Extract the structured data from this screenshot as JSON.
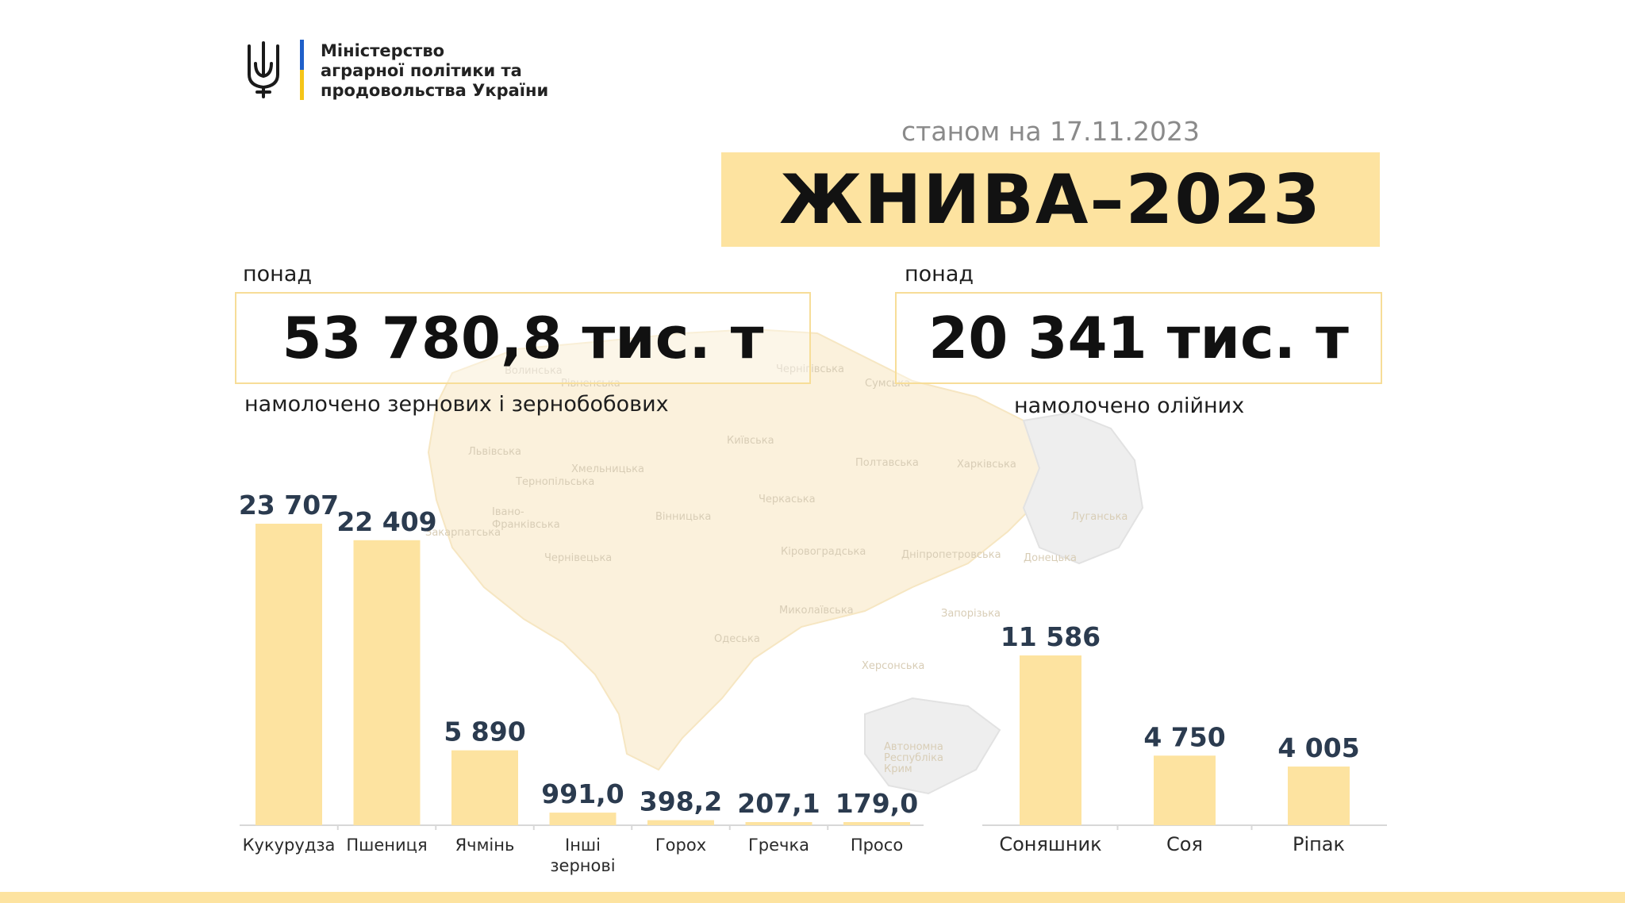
{
  "header": {
    "ministry_line1": "Міністерство",
    "ministry_line2": "аграрної політики та",
    "ministry_line3": "продовольства України",
    "logo_icon": "trident-coat-of-arms-icon",
    "flag_colors": {
      "blue": "#1f5fc9",
      "yellow": "#f5c518"
    }
  },
  "date_line": "станом на 17.11.2023",
  "title": "ЖНИВА–2023",
  "grains_total": {
    "over_label": "понад",
    "value": "53 780,8 тис. т",
    "caption": "намолочено зернових і зернобобових"
  },
  "oilseeds_total": {
    "over_label": "понад",
    "value": "20 341 тис. т",
    "caption": "намолочено олійних"
  },
  "map_regions": [
    "Волинська",
    "Рівненська",
    "Чернігівська",
    "Сумська",
    "Львівська",
    "Київська",
    "Хмельницька",
    "Тернопільська",
    "Полтавська",
    "Харківська",
    "Черкаська",
    "Вінницька",
    "Луганська",
    "Івано-",
    "Франківська",
    "Закарпатська",
    "Кіровоградська",
    "Дніпропетровська",
    "Чернівецька",
    "Донецька",
    "Миколаївська",
    "Запорізька",
    "Одеська",
    "Херсонська",
    "Автономна",
    "Республіка",
    "Крим"
  ],
  "colors": {
    "bar": "#fde3a0",
    "value_text": "#2b3b4f",
    "axis": "#d8d8d8",
    "category_text": "#2a2a2a"
  },
  "chart_data": [
    {
      "type": "bar",
      "categories": [
        "Кукурудза",
        "Пшениця",
        "Ячмінь",
        "Інші зернові",
        "Горох",
        "Гречка",
        "Просо"
      ],
      "category_lines": [
        [
          "Кукурудза"
        ],
        [
          "Пшениця"
        ],
        [
          "Ячмінь"
        ],
        [
          "Інші",
          "зернові"
        ],
        [
          "Горох"
        ],
        [
          "Гречка"
        ],
        [
          "Просо"
        ]
      ],
      "values": [
        23707,
        22409,
        5890,
        991.0,
        398.2,
        207.1,
        179.0
      ],
      "value_labels": [
        "23 707",
        "22 409",
        "5 890",
        "991,0",
        "398,2",
        "207,1",
        "179,0"
      ],
      "title": "",
      "xlabel": "",
      "ylabel": "",
      "ylim": [
        0,
        23707
      ],
      "grid": false,
      "legend": "none"
    },
    {
      "type": "bar",
      "categories": [
        "Соняшник",
        "Соя",
        "Ріпак"
      ],
      "category_lines": [
        [
          "Соняшник"
        ],
        [
          "Соя"
        ],
        [
          "Ріпак"
        ]
      ],
      "values": [
        11586,
        4750,
        4005
      ],
      "value_labels": [
        "11 586",
        "4 750",
        "4 005"
      ],
      "title": "",
      "xlabel": "",
      "ylabel": "",
      "ylim": [
        0,
        11586
      ],
      "grid": false,
      "legend": "none"
    }
  ]
}
